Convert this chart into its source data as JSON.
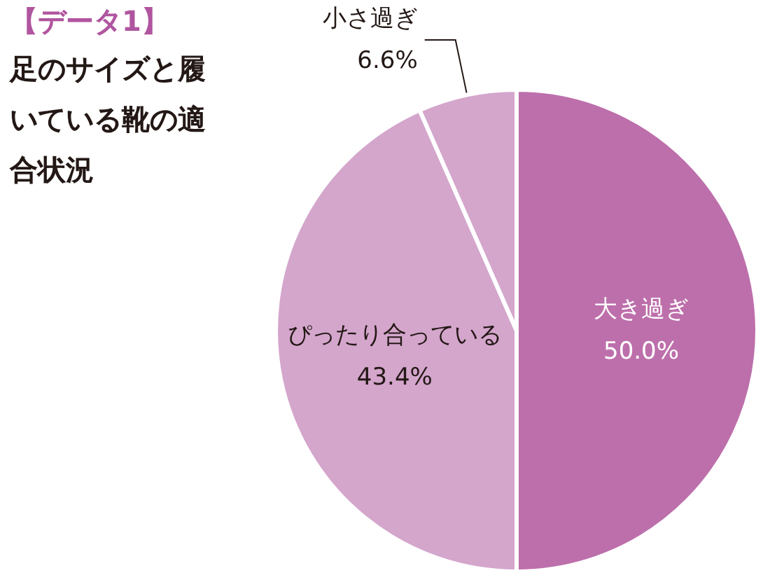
{
  "chart_data": {
    "type": "pie",
    "title": "【データ1】",
    "subtitle": "足のサイズと履いている靴の適合状況",
    "categories": [
      "大き過ぎ",
      "ぴったり合っている",
      "小さ過ぎ"
    ],
    "values": [
      50.0,
      43.4,
      6.6
    ],
    "value_labels": [
      "50.0%",
      "43.4%",
      "6.6%"
    ],
    "colors": [
      "#bd6fab",
      "#d4a6cc",
      "#d4a6cc"
    ],
    "legend": false
  }
}
